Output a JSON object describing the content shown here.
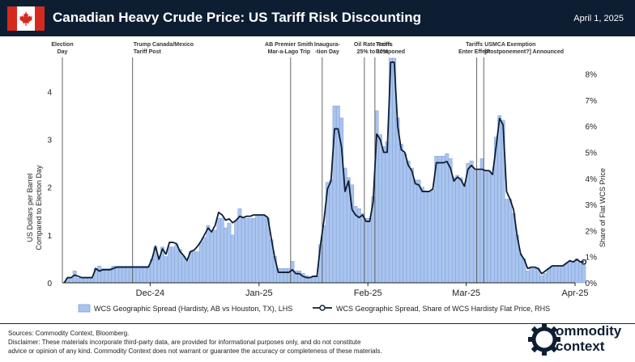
{
  "header": {
    "title": "Canadian Heavy Crude Price: US Tariff Risk Discounting",
    "date": "April 1, 2025"
  },
  "colors": {
    "header_bg": "#0d1e33",
    "bar_fill": "#a9c4ee",
    "bar_stroke": "#7f9fd6",
    "line": "#0d1e33",
    "flag_red": "#d52b1e"
  },
  "chart_data": {
    "type": "bar",
    "secondary_type": "line",
    "title": "Canadian Heavy Crude Price: US Tariff Risk Discounting",
    "ylabel": "US Dollars per Barrel\nCompared to Election Day",
    "ylabel_lines": [
      "US Dollars per Barrel",
      "Compared to Election Day"
    ],
    "y2label": "Share of Flat WCS Price",
    "ylim": [
      0,
      4.75
    ],
    "y2lim": [
      0,
      8.7
    ],
    "yticks": [
      "0",
      "1",
      "2",
      "3",
      "4"
    ],
    "y2ticks": [
      "0%",
      "1%",
      "2%",
      "3%",
      "4%",
      "5%",
      "6%",
      "7%",
      "8%"
    ],
    "xticks": [
      "Dec-24",
      "Jan-25",
      "Feb-25",
      "Mar-25",
      "Apr-25"
    ],
    "xtick_days": [
      25,
      56,
      87,
      115,
      146
    ],
    "day0": "2024-11-06",
    "legend": [
      "WCS Geographic Spread (Hardisty, AB vs Houston, TX), LHS",
      "WCS Geographic Spread, Share of WCS Hardisty Flat Price, RHS"
    ],
    "annotations": [
      {
        "day": 0,
        "lines": [
          "Election",
          "Day"
        ]
      },
      {
        "day": 20,
        "lines": [
          "Trump Canada/Mexico",
          "Tariff Post"
        ]
      },
      {
        "day": 65,
        "lines": [
          "AB Premier Smith",
          "Mar-a-Lago Trip"
        ]
      },
      {
        "day": 74,
        "lines": [
          "Inaugura-",
          "-tion Day"
        ]
      },
      {
        "day": 86,
        "lines": [
          "Oil Rate From",
          "25% to 10%"
        ]
      },
      {
        "day": 89,
        "lines": [
          "Tariffs",
          "Postponed"
        ]
      },
      {
        "day": 118,
        "lines": [
          "Tariffs",
          "Enter Effect"
        ]
      },
      {
        "day": 120,
        "lines": [
          "USMCA Exemption",
          "[Postponement?] Announced"
        ]
      }
    ],
    "series": [
      {
        "name": "WCS Geographic Spread (Hardisty, AB vs Houston, TX), LHS",
        "axis": "left",
        "values": [
          0,
          0.1,
          0.1,
          0.25,
          0.1,
          0.1,
          0.1,
          0.1,
          0.1,
          0.3,
          0.35,
          0.3,
          0.3,
          0.3,
          0.35,
          0.35,
          0.35,
          0.35,
          0.35,
          0.35,
          0.35,
          0.35,
          0.35,
          0.35,
          0.35,
          0.5,
          0.75,
          0.5,
          0.75,
          0.55,
          0.75,
          0.75,
          0.8,
          0.7,
          0.55,
          0.45,
          0.65,
          0.65,
          0.65,
          0.85,
          0.95,
          1.2,
          1.05,
          1.1,
          1.35,
          1.35,
          1.15,
          1.25,
          1.0,
          1.3,
          1.55,
          1.35,
          1.35,
          1.35,
          1.35,
          1.4,
          1.4,
          1.4,
          1.35,
          0.9,
          0.55,
          0.3,
          0.3,
          0.3,
          0.3,
          0.45,
          0.25,
          0.25,
          0.2,
          0.15,
          0.1,
          0.15,
          0.15,
          0.8,
          1.2,
          2.1,
          2.15,
          3.7,
          3.7,
          3.45,
          2.4,
          2.2,
          2.05,
          1.6,
          1.55,
          1.45,
          1.35,
          1.35,
          1.8,
          3.6,
          3.1,
          2.85,
          2.95,
          4.7,
          4.7,
          3.45,
          2.9,
          2.7,
          2.55,
          2.4,
          2.15,
          2.15,
          2.0,
          1.9,
          1.9,
          1.95,
          2.65,
          2.65,
          2.65,
          2.7,
          2.6,
          2.2,
          2.25,
          2.2,
          2.05,
          2.5,
          2.55,
          2.35,
          2.35,
          2.6,
          2.35,
          2.35,
          2.3,
          3.05,
          3.5,
          3.4,
          1.75,
          1.75,
          1.45,
          1.0,
          0.6,
          0.5,
          0.25,
          0.3,
          0.3,
          0.3,
          0.15,
          0.2,
          0.3,
          0.35,
          0.35,
          0.35,
          0.35,
          0.4,
          0.45,
          0.45,
          0.5,
          0.45,
          0.45
        ]
      },
      {
        "name": "WCS Geographic Spread, Share of WCS Hardisty Flat Price, RHS",
        "axis": "right",
        "values": [
          0,
          0.2,
          0.2,
          0.3,
          0.25,
          0.2,
          0.2,
          0.2,
          0.2,
          0.55,
          0.45,
          0.5,
          0.5,
          0.5,
          0.55,
          0.6,
          0.6,
          0.6,
          0.6,
          0.6,
          0.6,
          0.6,
          0.6,
          0.6,
          0.6,
          0.9,
          1.4,
          0.9,
          1.3,
          1.1,
          1.55,
          1.55,
          1.5,
          1.2,
          1.05,
          0.85,
          1.2,
          1.25,
          1.4,
          1.6,
          1.85,
          2.1,
          1.95,
          2.2,
          2.7,
          2.6,
          2.4,
          2.45,
          2.3,
          2.4,
          2.55,
          2.5,
          2.55,
          2.55,
          2.6,
          2.6,
          2.6,
          2.6,
          2.5,
          1.7,
          0.95,
          0.4,
          0.4,
          0.4,
          0.4,
          0.5,
          0.35,
          0.35,
          0.25,
          0.2,
          0.2,
          0.25,
          0.25,
          1.45,
          2.4,
          3.6,
          3.9,
          5.9,
          5.9,
          5.2,
          3.5,
          3.9,
          2.8,
          2.6,
          2.5,
          2.6,
          2.35,
          2.35,
          3.1,
          5.7,
          5.5,
          5.0,
          5.0,
          8.45,
          8.45,
          6.0,
          5.1,
          5.0,
          4.5,
          4.3,
          3.8,
          3.75,
          3.5,
          3.5,
          3.5,
          3.6,
          4.6,
          4.6,
          4.6,
          4.65,
          4.4,
          3.9,
          4.05,
          3.95,
          3.7,
          4.35,
          4.5,
          4.35,
          4.35,
          4.35,
          4.3,
          4.3,
          4.15,
          5.2,
          6.3,
          6.05,
          3.5,
          3.2,
          2.8,
          1.8,
          1.1,
          0.9,
          0.55,
          0.6,
          0.6,
          0.55,
          0.35,
          0.45,
          0.55,
          0.65,
          0.65,
          0.65,
          0.65,
          0.75,
          0.85,
          0.8,
          0.9,
          0.8,
          0.8
        ]
      }
    ]
  },
  "footer": {
    "sources": "Sources: Commodity Context, Bloomberg.",
    "disclaimer_1": "Disclaimer: These materials incorporate third-party data, are provided for informational purposes only, and do not constitute",
    "disclaimer_2": "advice or opinion of any kind. Commodity Context does not warrant or guarantee the accuracy or completeness of these materials.",
    "logo_text_1": "ommodity",
    "logo_text_2": "context"
  }
}
